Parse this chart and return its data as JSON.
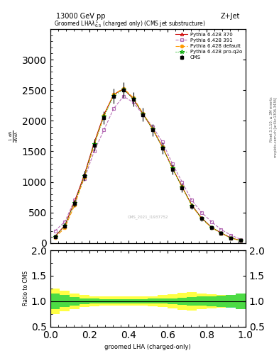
{
  "title_top": "13000 GeV pp",
  "title_right": "Z+Jet",
  "plot_title": "Groomed LHA$\\lambda^{1}_{0.5}$ (charged only) (CMS jet substructure)",
  "xlabel": "groomed LHA (charged-only)",
  "ylabel": "$\\frac{1}{\\mathrm{d}N}\\frac{\\mathrm{d}N}{\\mathrm{d}\\lambda}$",
  "ylabel_ratio": "Ratio to CMS",
  "right_label": "Rivet 3.1.10, ≥ 3M events\nmcplots.cern.ch [arXiv:1306.3436]",
  "watermark": "CMS_2021_I1937752",
  "xlim": [
    0,
    1
  ],
  "ylim_main": [
    0,
    3500
  ],
  "ylim_ratio": [
    0.5,
    2
  ],
  "cms_x": [
    0.025,
    0.075,
    0.125,
    0.175,
    0.225,
    0.275,
    0.325,
    0.375,
    0.425,
    0.475,
    0.525,
    0.575,
    0.625,
    0.675,
    0.725,
    0.775,
    0.825,
    0.875,
    0.925,
    0.975
  ],
  "cms_y": [
    100,
    280,
    650,
    1100,
    1600,
    2050,
    2400,
    2500,
    2350,
    2100,
    1850,
    1550,
    1200,
    900,
    600,
    400,
    250,
    160,
    80,
    40
  ],
  "cms_yerr": [
    20,
    40,
    60,
    80,
    100,
    110,
    120,
    130,
    120,
    110,
    100,
    90,
    80,
    70,
    50,
    40,
    30,
    20,
    15,
    10
  ],
  "py370_x": [
    0.025,
    0.075,
    0.125,
    0.175,
    0.225,
    0.275,
    0.325,
    0.375,
    0.425,
    0.475,
    0.525,
    0.575,
    0.625,
    0.675,
    0.725,
    0.775,
    0.825,
    0.875,
    0.925,
    0.975
  ],
  "py370_y": [
    110,
    290,
    680,
    1120,
    1640,
    2100,
    2430,
    2520,
    2360,
    2110,
    1860,
    1570,
    1230,
    920,
    620,
    410,
    260,
    165,
    85,
    42
  ],
  "py391_x": [
    0.025,
    0.075,
    0.125,
    0.175,
    0.225,
    0.275,
    0.325,
    0.375,
    0.425,
    0.475,
    0.525,
    0.575,
    0.625,
    0.675,
    0.725,
    0.775,
    0.825,
    0.875,
    0.925,
    0.975
  ],
  "py391_y": [
    200,
    350,
    700,
    1050,
    1500,
    1850,
    2200,
    2400,
    2300,
    2100,
    1900,
    1650,
    1300,
    1000,
    700,
    500,
    350,
    220,
    130,
    60
  ],
  "pydef_x": [
    0.025,
    0.075,
    0.125,
    0.175,
    0.225,
    0.275,
    0.325,
    0.375,
    0.425,
    0.475,
    0.525,
    0.575,
    0.625,
    0.675,
    0.725,
    0.775,
    0.825,
    0.875,
    0.925,
    0.975
  ],
  "pydef_y": [
    90,
    250,
    620,
    1080,
    1600,
    2080,
    2430,
    2530,
    2380,
    2120,
    1870,
    1570,
    1230,
    920,
    610,
    400,
    255,
    160,
    82,
    38
  ],
  "pyq2o_x": [
    0.025,
    0.075,
    0.125,
    0.175,
    0.225,
    0.275,
    0.325,
    0.375,
    0.425,
    0.475,
    0.525,
    0.575,
    0.625,
    0.675,
    0.725,
    0.775,
    0.825,
    0.875,
    0.925,
    0.975
  ],
  "pyq2o_y": [
    105,
    285,
    660,
    1100,
    1620,
    2070,
    2410,
    2510,
    2360,
    2110,
    1860,
    1560,
    1225,
    915,
    615,
    405,
    258,
    162,
    83,
    40
  ],
  "ratio_x": [
    0.025,
    0.075,
    0.125,
    0.175,
    0.225,
    0.275,
    0.325,
    0.375,
    0.425,
    0.475,
    0.525,
    0.575,
    0.625,
    0.675,
    0.725,
    0.775,
    0.825,
    0.875,
    0.925,
    0.975
  ],
  "green_band_upper": [
    1.15,
    1.12,
    1.08,
    1.06,
    1.05,
    1.04,
    1.04,
    1.04,
    1.04,
    1.04,
    1.05,
    1.05,
    1.06,
    1.07,
    1.08,
    1.09,
    1.1,
    1.11,
    1.13,
    1.15
  ],
  "green_band_lower": [
    0.85,
    0.88,
    0.92,
    0.94,
    0.95,
    0.96,
    0.96,
    0.96,
    0.96,
    0.96,
    0.95,
    0.95,
    0.94,
    0.93,
    0.92,
    0.91,
    0.9,
    0.89,
    0.87,
    0.85
  ],
  "yellow_band_upper": [
    1.25,
    1.2,
    1.15,
    1.12,
    1.1,
    1.09,
    1.09,
    1.09,
    1.09,
    1.09,
    1.1,
    1.12,
    1.14,
    1.17,
    1.18,
    1.15,
    1.14,
    1.13,
    1.12,
    1.15
  ],
  "yellow_band_lower": [
    0.75,
    0.8,
    0.85,
    0.88,
    0.9,
    0.91,
    0.91,
    0.91,
    0.91,
    0.91,
    0.9,
    0.88,
    0.86,
    0.83,
    0.82,
    0.85,
    0.86,
    0.87,
    0.88,
    0.85
  ],
  "color_cms": "#000000",
  "color_py370": "#cc0000",
  "color_py391": "#993399",
  "color_pydef": "#ff9900",
  "color_pyq2o": "#00aa00",
  "color_green_band": "#00cc44",
  "color_yellow_band": "#ffff44",
  "legend_labels": [
    "CMS",
    "Pythia 6.428 370",
    "Pythia 6.428 391",
    "Pythia 6.428 default",
    "Pythia 6.428 pro-q2o"
  ],
  "yticks_main": [
    0,
    500,
    1000,
    1500,
    2000,
    2500,
    3000
  ],
  "yticks_ratio": [
    0.5,
    1.0,
    1.5,
    2.0
  ]
}
